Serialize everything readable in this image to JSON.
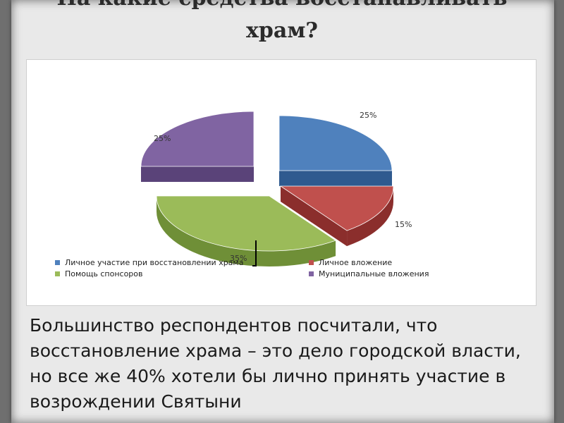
{
  "slide": {
    "title_line1": "На какие средства восстанавливать",
    "title_line2": "храм?",
    "body": "Большинство респондентов посчитали, что восстановление храма – это дело городской власти, но все же 40% хотели бы лично принять участие в возрождении Святыни"
  },
  "chart_data": {
    "type": "pie",
    "slices": [
      {
        "name": "Личное участие при восстановлении храма",
        "value": 25,
        "label": "25%",
        "color": "#4f81bd",
        "dark": "#2f5a8f"
      },
      {
        "name": "Личное вложение",
        "value": 15,
        "label": "15%",
        "color": "#c0504d",
        "dark": "#8b2e2c"
      },
      {
        "name": "Помощь спонсоров",
        "value": 35,
        "label": "35%",
        "color": "#9bbb59",
        "dark": "#6f8f37"
      },
      {
        "name": "Муниципальные вложения",
        "value": 25,
        "label": "25%",
        "color": "#8064a2",
        "dark": "#5a4379"
      }
    ],
    "legend_position": "bottom"
  }
}
